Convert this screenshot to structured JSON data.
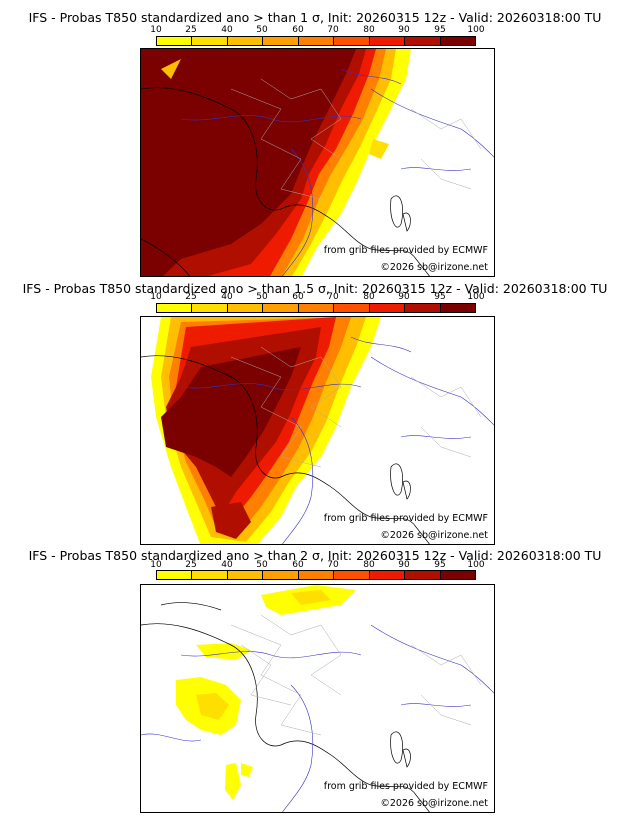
{
  "colorbar": {
    "ticks": [
      "10",
      "25",
      "40",
      "50",
      "60",
      "70",
      "80",
      "90",
      "95",
      "100"
    ],
    "colors": [
      "#ffff00",
      "#ffdf00",
      "#ffbf00",
      "#ff9f00",
      "#ff7f00",
      "#ff5000",
      "#ee1b00",
      "#b00f00",
      "#7b0000"
    ]
  },
  "panels": [
    {
      "title": "IFS - Probas T850  standardized ano > than 1 σ, Init: 20260315 12z - Valid: 20260318:00 TU",
      "credit_source": "from grib files provided by ECMWF",
      "credit_copyright": "©2026 sb@irizone.net"
    },
    {
      "title": "IFS - Probas T850  standardized ano > than 1.5 σ, Init: 20260315 12z - Valid: 20260318:00 TU",
      "credit_source": "from grib files provided by ECMWF",
      "credit_copyright": "©2026 sb@irizone.net"
    },
    {
      "title": "IFS - Probas T850  standardized ano > than 2 σ, Init: 20260315 12z - Valid: 20260318:00 TU",
      "credit_source": "from grib files provided by ECMWF",
      "credit_copyright": "©2026 sb@irizone.net"
    }
  ]
}
